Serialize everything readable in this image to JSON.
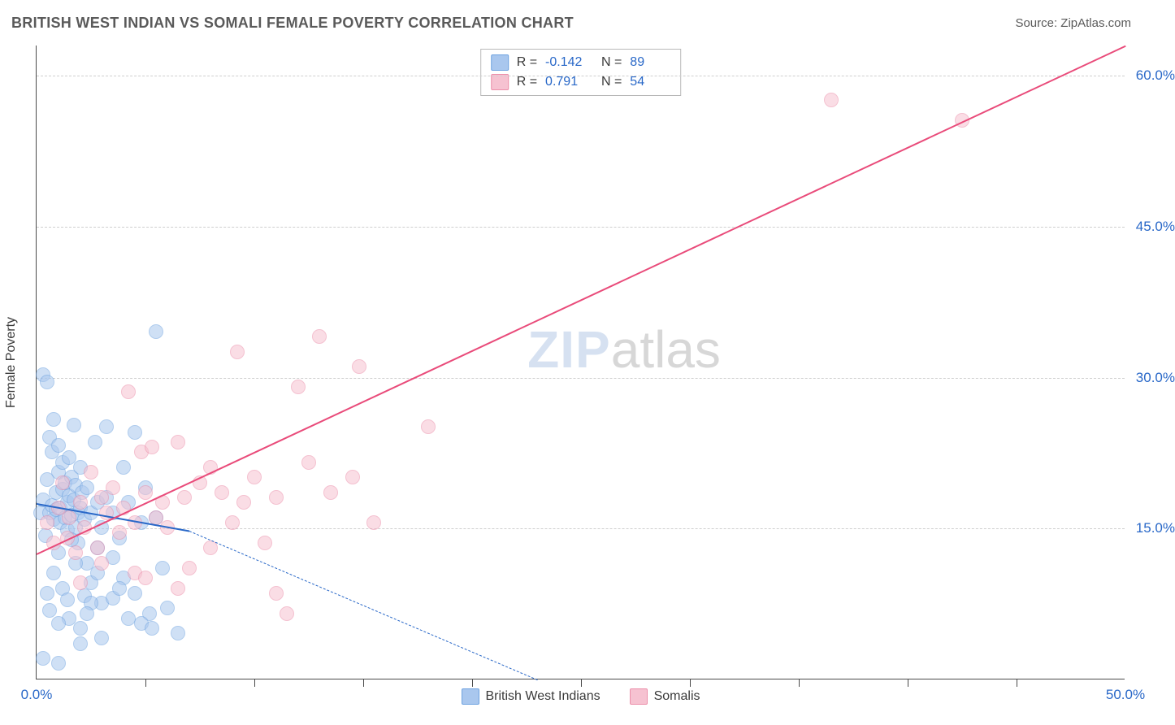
{
  "title": "BRITISH WEST INDIAN VS SOMALI FEMALE POVERTY CORRELATION CHART",
  "source": "Source: ZipAtlas.com",
  "ylabel": "Female Poverty",
  "watermark": {
    "part1": "ZIP",
    "part2": "atlas"
  },
  "chart": {
    "type": "scatter",
    "background_color": "#ffffff",
    "grid_color": "#cfcfcf",
    "axis_color": "#4a4a4a",
    "label_color": "#2968c8",
    "xlim": [
      0,
      50
    ],
    "ylim": [
      0,
      63
    ],
    "x_ticks_major": [
      0,
      50
    ],
    "x_ticks_minor": [
      5,
      10,
      15,
      20,
      25,
      30,
      35,
      40,
      45
    ],
    "x_tick_labels": [
      "0.0%",
      "50.0%"
    ],
    "y_ticks": [
      15,
      30,
      45,
      60
    ],
    "y_tick_labels": [
      "15.0%",
      "30.0%",
      "45.0%",
      "60.0%"
    ],
    "gridlines_y": [
      15,
      30,
      45,
      60
    ],
    "point_radius": 9,
    "point_opacity": 0.55,
    "point_border_width": 1.5,
    "line_width_solid": 2.2,
    "line_width_dash": 1.4,
    "dash_pattern": "6,5"
  },
  "series": [
    {
      "name": "British West Indians",
      "color_fill": "#a9c7ee",
      "color_border": "#6fa3e0",
      "line_color": "#2968c8",
      "R": "-0.142",
      "N": "89",
      "trend": {
        "x1": 0,
        "y1": 17.5,
        "x2": 7,
        "y2": 14.8,
        "solid": true
      },
      "trend_ext": {
        "x1": 7,
        "y1": 14.8,
        "x2": 23,
        "y2": 0,
        "solid": false
      },
      "points": [
        [
          0.2,
          16.5
        ],
        [
          0.3,
          17.8
        ],
        [
          0.3,
          30.2
        ],
        [
          0.4,
          14.2
        ],
        [
          0.5,
          29.5
        ],
        [
          0.5,
          19.8
        ],
        [
          0.6,
          16.5
        ],
        [
          0.6,
          24.0
        ],
        [
          0.7,
          22.5
        ],
        [
          0.7,
          17.2
        ],
        [
          0.8,
          15.8
        ],
        [
          0.8,
          25.8
        ],
        [
          0.9,
          18.5
        ],
        [
          0.9,
          16.8
        ],
        [
          1.0,
          20.5
        ],
        [
          1.0,
          12.5
        ],
        [
          1.0,
          23.2
        ],
        [
          1.1,
          17.0
        ],
        [
          1.1,
          15.5
        ],
        [
          1.2,
          18.8
        ],
        [
          1.2,
          21.5
        ],
        [
          1.3,
          19.5
        ],
        [
          1.3,
          16.0
        ],
        [
          1.4,
          17.5
        ],
        [
          1.4,
          14.8
        ],
        [
          1.5,
          22.0
        ],
        [
          1.5,
          18.2
        ],
        [
          1.6,
          16.2
        ],
        [
          1.6,
          20.0
        ],
        [
          1.7,
          25.2
        ],
        [
          1.7,
          17.8
        ],
        [
          1.8,
          15.0
        ],
        [
          1.8,
          19.2
        ],
        [
          1.9,
          16.5
        ],
        [
          1.9,
          13.5
        ],
        [
          2.0,
          17.0
        ],
        [
          2.0,
          21.0
        ],
        [
          2.1,
          18.5
        ],
        [
          2.2,
          8.2
        ],
        [
          2.2,
          15.8
        ],
        [
          2.3,
          19.0
        ],
        [
          2.3,
          11.5
        ],
        [
          2.5,
          16.5
        ],
        [
          2.5,
          9.5
        ],
        [
          2.7,
          23.5
        ],
        [
          2.8,
          10.5
        ],
        [
          2.8,
          17.5
        ],
        [
          3.0,
          7.5
        ],
        [
          3.0,
          15.0
        ],
        [
          3.2,
          25.0
        ],
        [
          3.2,
          18.0
        ],
        [
          3.5,
          8.0
        ],
        [
          3.5,
          16.5
        ],
        [
          3.8,
          14.0
        ],
        [
          4.0,
          21.0
        ],
        [
          4.0,
          10.0
        ],
        [
          4.2,
          17.5
        ],
        [
          4.5,
          24.5
        ],
        [
          4.5,
          8.5
        ],
        [
          4.8,
          15.5
        ],
        [
          5.0,
          19.0
        ],
        [
          5.2,
          6.5
        ],
        [
          5.5,
          34.5
        ],
        [
          5.5,
          16.0
        ],
        [
          5.8,
          11.0
        ],
        [
          6.0,
          7.0
        ],
        [
          6.5,
          4.5
        ],
        [
          1.0,
          1.5
        ],
        [
          1.5,
          6.0
        ],
        [
          2.0,
          5.0
        ],
        [
          2.5,
          7.5
        ],
        [
          3.0,
          4.0
        ],
        [
          1.2,
          9.0
        ],
        [
          1.8,
          11.5
        ],
        [
          2.3,
          6.5
        ],
        [
          0.5,
          8.5
        ],
        [
          0.8,
          10.5
        ],
        [
          1.4,
          7.8
        ],
        [
          2.8,
          13.0
        ],
        [
          3.5,
          12.0
        ],
        [
          1.6,
          13.8
        ],
        [
          0.3,
          2.0
        ],
        [
          4.2,
          6.0
        ],
        [
          4.8,
          5.5
        ],
        [
          5.3,
          5.0
        ],
        [
          3.8,
          9.0
        ],
        [
          2.0,
          3.5
        ],
        [
          1.0,
          5.5
        ],
        [
          0.6,
          6.8
        ]
      ]
    },
    {
      "name": "Somalis",
      "color_fill": "#f6c2d1",
      "color_border": "#ec8faa",
      "line_color": "#e94b7a",
      "R": "0.791",
      "N": "54",
      "trend": {
        "x1": 0,
        "y1": 12.5,
        "x2": 50,
        "y2": 63,
        "solid": true
      },
      "points": [
        [
          0.5,
          15.5
        ],
        [
          0.8,
          13.5
        ],
        [
          1.0,
          17.0
        ],
        [
          1.2,
          19.5
        ],
        [
          1.4,
          14.0
        ],
        [
          1.5,
          16.0
        ],
        [
          1.8,
          12.5
        ],
        [
          2.0,
          17.5
        ],
        [
          2.2,
          15.0
        ],
        [
          2.5,
          20.5
        ],
        [
          2.8,
          13.0
        ],
        [
          3.0,
          18.0
        ],
        [
          3.2,
          16.5
        ],
        [
          3.5,
          19.0
        ],
        [
          3.8,
          14.5
        ],
        [
          4.0,
          17.0
        ],
        [
          4.2,
          28.5
        ],
        [
          4.5,
          15.5
        ],
        [
          4.8,
          22.5
        ],
        [
          5.0,
          18.5
        ],
        [
          5.3,
          23.0
        ],
        [
          5.5,
          16.0
        ],
        [
          5.8,
          17.5
        ],
        [
          6.0,
          15.0
        ],
        [
          6.5,
          23.5
        ],
        [
          6.8,
          18.0
        ],
        [
          7.0,
          11.0
        ],
        [
          7.5,
          19.5
        ],
        [
          8.0,
          21.0
        ],
        [
          8.5,
          18.5
        ],
        [
          9.0,
          15.5
        ],
        [
          9.2,
          32.5
        ],
        [
          9.5,
          17.5
        ],
        [
          10.0,
          20.0
        ],
        [
          10.5,
          13.5
        ],
        [
          11.0,
          18.0
        ],
        [
          11.5,
          6.5
        ],
        [
          12.0,
          29.0
        ],
        [
          12.5,
          21.5
        ],
        [
          13.0,
          34.0
        ],
        [
          13.5,
          18.5
        ],
        [
          14.5,
          20.0
        ],
        [
          14.8,
          31.0
        ],
        [
          15.5,
          15.5
        ],
        [
          18.0,
          25.0
        ],
        [
          11.0,
          8.5
        ],
        [
          4.5,
          10.5
        ],
        [
          3.0,
          11.5
        ],
        [
          2.0,
          9.5
        ],
        [
          6.5,
          9.0
        ],
        [
          8.0,
          13.0
        ],
        [
          36.5,
          57.5
        ],
        [
          42.5,
          55.5
        ],
        [
          5.0,
          10.0
        ]
      ]
    }
  ],
  "legend_items": [
    {
      "label": "British West Indians",
      "fill": "#a9c7ee",
      "border": "#6fa3e0"
    },
    {
      "label": "Somalis",
      "fill": "#f6c2d1",
      "border": "#ec8faa"
    }
  ]
}
